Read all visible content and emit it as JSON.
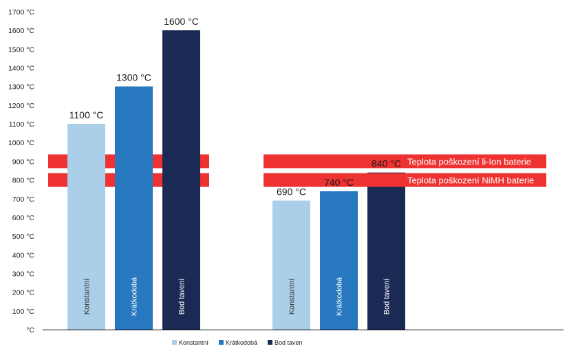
{
  "chart_data": {
    "type": "bar",
    "y_unit": "°C",
    "ylim": [
      0,
      1700
    ],
    "y_ticks": [
      {
        "value": 0,
        "label": "°C"
      },
      {
        "value": 100,
        "label": "100 °C"
      },
      {
        "value": 200,
        "label": "200 °C"
      },
      {
        "value": 300,
        "label": "300 °C"
      },
      {
        "value": 400,
        "label": "400 °C"
      },
      {
        "value": 500,
        "label": "500 °C"
      },
      {
        "value": 600,
        "label": "600 °C"
      },
      {
        "value": 700,
        "label": "700 °C"
      },
      {
        "value": 800,
        "label": "800 °C"
      },
      {
        "value": 900,
        "label": "900 °C"
      },
      {
        "value": 1000,
        "label": "1000 °C"
      },
      {
        "value": 1100,
        "label": "1100 °C"
      },
      {
        "value": 1200,
        "label": "1200 °C"
      },
      {
        "value": 1300,
        "label": "1300 °C"
      },
      {
        "value": 1400,
        "label": "1400 °C"
      },
      {
        "value": 1500,
        "label": "1500 °C"
      },
      {
        "value": 1600,
        "label": "1600 °C"
      },
      {
        "value": 1700,
        "label": "1700 °C"
      }
    ],
    "groups": [
      {
        "bars": [
          {
            "series": "Konstantní",
            "label": "Konstantní",
            "value": 1100,
            "value_label": "1100 °C"
          },
          {
            "series": "Krátkodobá",
            "label": "Krátkodobá",
            "value": 1300,
            "value_label": "1300 °C"
          },
          {
            "series": "Bod taven",
            "label": "Bod tavení",
            "value": 1600,
            "value_label": "1600 °C"
          }
        ]
      },
      {
        "bars": [
          {
            "series": "Konstantní",
            "label": "Konstantní",
            "value": 690,
            "value_label": "690 °C"
          },
          {
            "series": "Krátkodobá",
            "label": "Krátkodobá",
            "value": 740,
            "value_label": "740 °C"
          },
          {
            "series": "Bod taven",
            "label": "Bod tavení",
            "value": 840,
            "value_label": "840 °C"
          }
        ]
      }
    ],
    "reference_lines": [
      {
        "value": 900,
        "label": "Teplota poškození li-Ion baterie"
      },
      {
        "value": 800,
        "label": "Teplota poškození NiMH baterie"
      }
    ],
    "legend": {
      "position": "bottom",
      "items": [
        {
          "name": "Konstantní",
          "color": "#abcfe8"
        },
        {
          "name": "Krátkodobá",
          "color": "#2878bf"
        },
        {
          "name": "Bod taven",
          "color": "#1b2a55"
        }
      ]
    },
    "colors": {
      "band": "#ee3231",
      "axis": "#000000",
      "text": "#1a1a1a"
    },
    "grid": false
  }
}
